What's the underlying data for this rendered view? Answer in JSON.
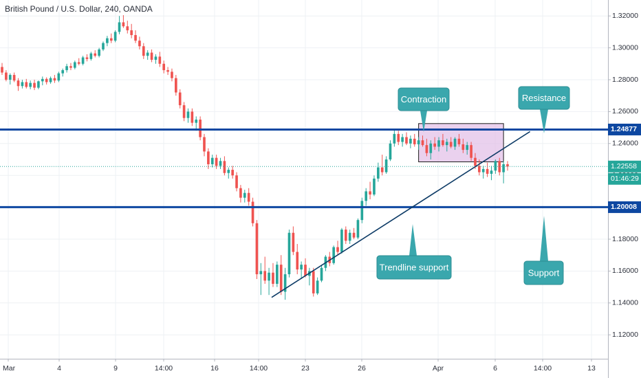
{
  "header": {
    "title": "British Pound / U.S. Dollar, 240, OANDA"
  },
  "chart_data": {
    "type": "candlestick",
    "ylim": [
      1.105,
      1.33
    ],
    "y_ticks": [
      "1.12000",
      "1.14000",
      "1.16000",
      "1.18000",
      "1.20000",
      "1.22000",
      "1.24000",
      "1.26000",
      "1.28000",
      "1.30000",
      "1.32000"
    ],
    "x_ticks": [
      "Mar",
      "4",
      "9",
      "14:00",
      "16",
      "14:00",
      "23",
      "26",
      "Apr",
      "6",
      "14:00",
      "13"
    ],
    "price_badges": {
      "resistance_level": "1.24877",
      "current_price": "1.22558",
      "countdown": "01:46:29",
      "support_level": "1.20008"
    },
    "levels": {
      "resistance": 1.24877,
      "support": 1.20008,
      "current": 1.22558
    },
    "colors": {
      "up": "#26a69a",
      "down": "#ef5350",
      "level_line": "#0d47a1",
      "callout": "#3aa7ad",
      "box_fill": "#e1bee7",
      "grid": "#eef1f4"
    },
    "annotations": {
      "contraction": "Contraction",
      "resistance": "Resistance",
      "trendline": "Trendline support",
      "support": "Support"
    },
    "contraction_box": {
      "high": 1.2525,
      "low": 1.2285
    },
    "trendline": {
      "from_close": 1.1435,
      "to_close": 1.2475
    },
    "candles": [
      [
        1.288,
        1.2905,
        1.283,
        1.2845
      ],
      [
        1.2845,
        1.286,
        1.279,
        1.28
      ],
      [
        1.28,
        1.284,
        1.277,
        1.283
      ],
      [
        1.283,
        1.2845,
        1.2785,
        1.2795
      ],
      [
        1.2795,
        1.281,
        1.273,
        1.276
      ],
      [
        1.276,
        1.28,
        1.2745,
        1.2785
      ],
      [
        1.2785,
        1.2805,
        1.2745,
        1.2755
      ],
      [
        1.2755,
        1.2795,
        1.274,
        1.278
      ],
      [
        1.278,
        1.28,
        1.2735,
        1.275
      ],
      [
        1.275,
        1.2795,
        1.274,
        1.279
      ],
      [
        1.279,
        1.282,
        1.2765,
        1.2805
      ],
      [
        1.2805,
        1.2815,
        1.277,
        1.2785
      ],
      [
        1.2785,
        1.282,
        1.2775,
        1.281
      ],
      [
        1.281,
        1.283,
        1.278,
        1.2795
      ],
      [
        1.2795,
        1.285,
        1.2785,
        1.284
      ],
      [
        1.284,
        1.287,
        1.282,
        1.286
      ],
      [
        1.286,
        1.29,
        1.2845,
        1.2885
      ],
      [
        1.2885,
        1.2905,
        1.286,
        1.2875
      ],
      [
        1.2875,
        1.292,
        1.2865,
        1.291
      ],
      [
        1.291,
        1.2935,
        1.289,
        1.29
      ],
      [
        1.29,
        1.295,
        1.289,
        1.294
      ],
      [
        1.294,
        1.296,
        1.2915,
        1.293
      ],
      [
        1.293,
        1.2975,
        1.292,
        1.2965
      ],
      [
        1.2965,
        1.2985,
        1.294,
        1.295
      ],
      [
        1.295,
        1.3,
        1.294,
        1.299
      ],
      [
        1.299,
        1.304,
        1.298,
        1.303
      ],
      [
        1.303,
        1.3075,
        1.301,
        1.306
      ],
      [
        1.306,
        1.309,
        1.303,
        1.3045
      ],
      [
        1.3045,
        1.311,
        1.3035,
        1.31
      ],
      [
        1.31,
        1.32,
        1.3085,
        1.316
      ],
      [
        1.316,
        1.3205,
        1.3125,
        1.3135
      ],
      [
        1.3135,
        1.317,
        1.309,
        1.311
      ],
      [
        1.311,
        1.315,
        1.306,
        1.308
      ],
      [
        1.308,
        1.311,
        1.303,
        1.3045
      ],
      [
        1.3045,
        1.307,
        1.299,
        1.301
      ],
      [
        1.301,
        1.303,
        1.293,
        1.295
      ],
      [
        1.295,
        1.2985,
        1.2925,
        1.297
      ],
      [
        1.297,
        1.299,
        1.291,
        1.2925
      ],
      [
        1.2925,
        1.296,
        1.29,
        1.2945
      ],
      [
        1.2945,
        1.2975,
        1.288,
        1.29
      ],
      [
        1.29,
        1.292,
        1.284,
        1.286
      ],
      [
        1.286,
        1.288,
        1.283,
        1.285
      ],
      [
        1.285,
        1.287,
        1.279,
        1.281
      ],
      [
        1.281,
        1.283,
        1.27,
        1.272
      ],
      [
        1.272,
        1.274,
        1.262,
        1.264
      ],
      [
        1.264,
        1.266,
        1.254,
        1.256
      ],
      [
        1.256,
        1.262,
        1.253,
        1.26
      ],
      [
        1.26,
        1.262,
        1.251,
        1.253
      ],
      [
        1.253,
        1.257,
        1.248,
        1.255
      ],
      [
        1.255,
        1.257,
        1.242,
        1.244
      ],
      [
        1.244,
        1.246,
        1.232,
        1.235
      ],
      [
        1.235,
        1.237,
        1.224,
        1.227
      ],
      [
        1.227,
        1.233,
        1.225,
        1.231
      ],
      [
        1.231,
        1.233,
        1.224,
        1.226
      ],
      [
        1.226,
        1.231,
        1.224,
        1.229
      ],
      [
        1.229,
        1.232,
        1.22,
        1.2215
      ],
      [
        1.2215,
        1.225,
        1.218,
        1.2235
      ],
      [
        1.2235,
        1.226,
        1.218,
        1.22
      ],
      [
        1.22,
        1.222,
        1.21,
        1.212
      ],
      [
        1.212,
        1.214,
        1.203,
        1.206
      ],
      [
        1.206,
        1.211,
        1.203,
        1.209
      ],
      [
        1.209,
        1.212,
        1.201,
        1.2035
      ],
      [
        1.2035,
        1.206,
        1.188,
        1.19
      ],
      [
        1.19,
        1.192,
        1.155,
        1.158
      ],
      [
        1.158,
        1.165,
        1.145,
        1.16
      ],
      [
        1.16,
        1.169,
        1.152,
        1.154
      ],
      [
        1.154,
        1.162,
        1.145,
        1.159
      ],
      [
        1.159,
        1.165,
        1.15,
        1.152
      ],
      [
        1.152,
        1.166,
        1.15,
        1.164
      ],
      [
        1.164,
        1.17,
        1.145,
        1.147
      ],
      [
        1.147,
        1.162,
        1.142,
        1.158
      ],
      [
        1.158,
        1.186,
        1.156,
        1.184
      ],
      [
        1.184,
        1.188,
        1.17,
        1.172
      ],
      [
        1.172,
        1.177,
        1.158,
        1.161
      ],
      [
        1.161,
        1.166,
        1.155,
        1.164
      ],
      [
        1.164,
        1.168,
        1.156,
        1.157
      ],
      [
        1.157,
        1.162,
        1.151,
        1.16
      ],
      [
        1.16,
        1.162,
        1.144,
        1.146
      ],
      [
        1.146,
        1.156,
        1.145,
        1.154
      ],
      [
        1.154,
        1.164,
        1.153,
        1.162
      ],
      [
        1.162,
        1.17,
        1.16,
        1.169
      ],
      [
        1.169,
        1.172,
        1.163,
        1.165
      ],
      [
        1.165,
        1.176,
        1.164,
        1.175
      ],
      [
        1.175,
        1.179,
        1.17,
        1.172
      ],
      [
        1.172,
        1.187,
        1.171,
        1.186
      ],
      [
        1.186,
        1.188,
        1.177,
        1.179
      ],
      [
        1.179,
        1.186,
        1.177,
        1.184
      ],
      [
        1.184,
        1.187,
        1.18,
        1.181
      ],
      [
        1.181,
        1.193,
        1.18,
        1.192
      ],
      [
        1.192,
        1.206,
        1.19,
        1.204
      ],
      [
        1.204,
        1.212,
        1.201,
        1.21
      ],
      [
        1.21,
        1.216,
        1.205,
        1.208
      ],
      [
        1.208,
        1.22,
        1.207,
        1.218
      ],
      [
        1.218,
        1.228,
        1.216,
        1.225
      ],
      [
        1.225,
        1.233,
        1.22,
        1.222
      ],
      [
        1.222,
        1.232,
        1.221,
        1.23
      ],
      [
        1.23,
        1.242,
        1.229,
        1.24
      ],
      [
        1.24,
        1.249,
        1.238,
        1.246
      ],
      [
        1.246,
        1.248,
        1.239,
        1.241
      ],
      [
        1.241,
        1.246,
        1.238,
        1.244
      ],
      [
        1.244,
        1.247,
        1.239,
        1.24
      ],
      [
        1.24,
        1.245,
        1.237,
        1.243
      ],
      [
        1.243,
        1.246,
        1.238,
        1.2395
      ],
      [
        1.2395,
        1.244,
        1.236,
        1.242
      ],
      [
        1.242,
        1.245,
        1.238,
        1.239
      ],
      [
        1.239,
        1.243,
        1.232,
        1.234
      ],
      [
        1.234,
        1.242,
        1.23,
        1.24
      ],
      [
        1.24,
        1.244,
        1.236,
        1.238
      ],
      [
        1.238,
        1.244,
        1.235,
        1.242
      ],
      [
        1.242,
        1.246,
        1.238,
        1.239
      ],
      [
        1.239,
        1.243,
        1.235,
        1.241
      ],
      [
        1.241,
        1.244,
        1.237,
        1.238
      ],
      [
        1.238,
        1.244,
        1.236,
        1.243
      ],
      [
        1.243,
        1.246,
        1.238,
        1.2395
      ],
      [
        1.2395,
        1.243,
        1.234,
        1.236
      ],
      [
        1.236,
        1.241,
        1.233,
        1.239
      ],
      [
        1.239,
        1.241,
        1.229,
        1.231
      ],
      [
        1.231,
        1.234,
        1.224,
        1.226
      ],
      [
        1.226,
        1.23,
        1.22,
        1.222
      ],
      [
        1.222,
        1.226,
        1.218,
        1.224
      ],
      [
        1.224,
        1.228,
        1.219,
        1.221
      ],
      [
        1.221,
        1.226,
        1.217,
        1.223
      ],
      [
        1.223,
        1.23,
        1.221,
        1.229
      ],
      [
        1.229,
        1.231,
        1.22,
        1.222
      ],
      [
        1.222,
        1.229,
        1.215,
        1.227
      ],
      [
        1.227,
        1.229,
        1.223,
        1.2256
      ]
    ]
  }
}
